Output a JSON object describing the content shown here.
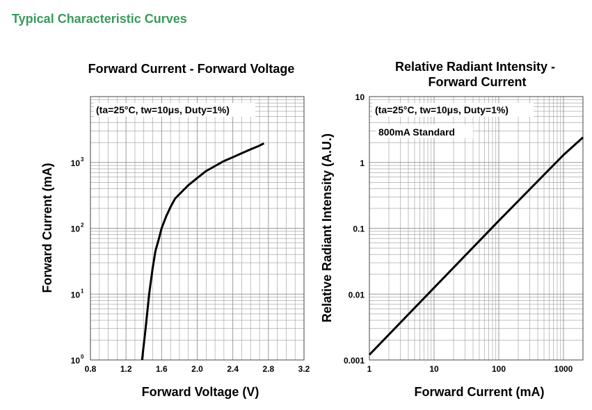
{
  "heading": "Typical Characteristic Curves",
  "colors": {
    "heading": "#3a9a5c",
    "grid": "#9a9a9a",
    "curve": "#000000"
  },
  "chart_data": [
    {
      "type": "line",
      "title": "Forward Current - Forward Voltage",
      "xlabel": "Forward Voltage (V)",
      "ylabel": "Forward Current (mA)",
      "xlim": [
        0.8,
        3.2
      ],
      "ylim": [
        1,
        10000
      ],
      "yscale": "log",
      "grid": true,
      "annotation": "(ta=25°C, tw=10μs, Duty=1%)",
      "xticks": [
        {
          "value": 0.8,
          "label": "0.8"
        },
        {
          "value": 1.2,
          "label": "1.2"
        },
        {
          "value": 1.6,
          "label": "1.6"
        },
        {
          "value": 2.0,
          "label": "2.0"
        },
        {
          "value": 2.4,
          "label": "2.4"
        },
        {
          "value": 2.8,
          "label": "2.8"
        },
        {
          "value": 3.2,
          "label": "3.2"
        }
      ],
      "yticks": [
        {
          "value": 1,
          "base": "10",
          "exp": "0"
        },
        {
          "value": 10,
          "base": "10",
          "exp": "1"
        },
        {
          "value": 100,
          "base": "10",
          "exp": "2"
        },
        {
          "value": 1000,
          "base": "10",
          "exp": "3"
        }
      ],
      "series": [
        {
          "x": [
            1.38,
            1.42,
            1.46,
            1.5,
            1.53,
            1.57,
            1.6,
            1.65,
            1.7,
            1.75,
            1.8,
            1.9,
            2.0,
            2.1,
            2.2,
            2.3,
            2.4,
            2.5,
            2.6,
            2.7,
            2.75
          ],
          "y": [
            1,
            3,
            10,
            25,
            45,
            70,
            100,
            150,
            210,
            280,
            330,
            450,
            580,
            740,
            880,
            1050,
            1200,
            1380,
            1580,
            1800,
            1950
          ]
        }
      ]
    },
    {
      "type": "line",
      "title": "Relative Radiant Intensity - Forward Current",
      "title_lines": [
        "Relative Radiant Intensity -",
        "Forward Current"
      ],
      "xlabel": "Forward Current (mA)",
      "ylabel": "Relative Radiant Intensity (A.U.)",
      "xlim": [
        1,
        2000
      ],
      "ylim": [
        0.001,
        10
      ],
      "xscale": "log",
      "yscale": "log",
      "grid": true,
      "annotation": "(ta=25°C, tw=10μs, Duty=1%)",
      "annotation2": "800mA Standard",
      "xticks": [
        {
          "value": 1,
          "label": "1"
        },
        {
          "value": 10,
          "label": "10"
        },
        {
          "value": 100,
          "label": "100"
        },
        {
          "value": 1000,
          "label": "1000"
        }
      ],
      "yticks": [
        {
          "value": 0.001,
          "label": "0.001"
        },
        {
          "value": 0.01,
          "label": "0.01"
        },
        {
          "value": 0.1,
          "label": "0.1"
        },
        {
          "value": 1,
          "label": "1"
        },
        {
          "value": 10,
          "label": "10"
        }
      ],
      "series": [
        {
          "x": [
            1,
            10,
            100,
            1000,
            2000
          ],
          "y": [
            0.0012,
            0.0125,
            0.13,
            1.3,
            2.4
          ]
        }
      ]
    }
  ]
}
